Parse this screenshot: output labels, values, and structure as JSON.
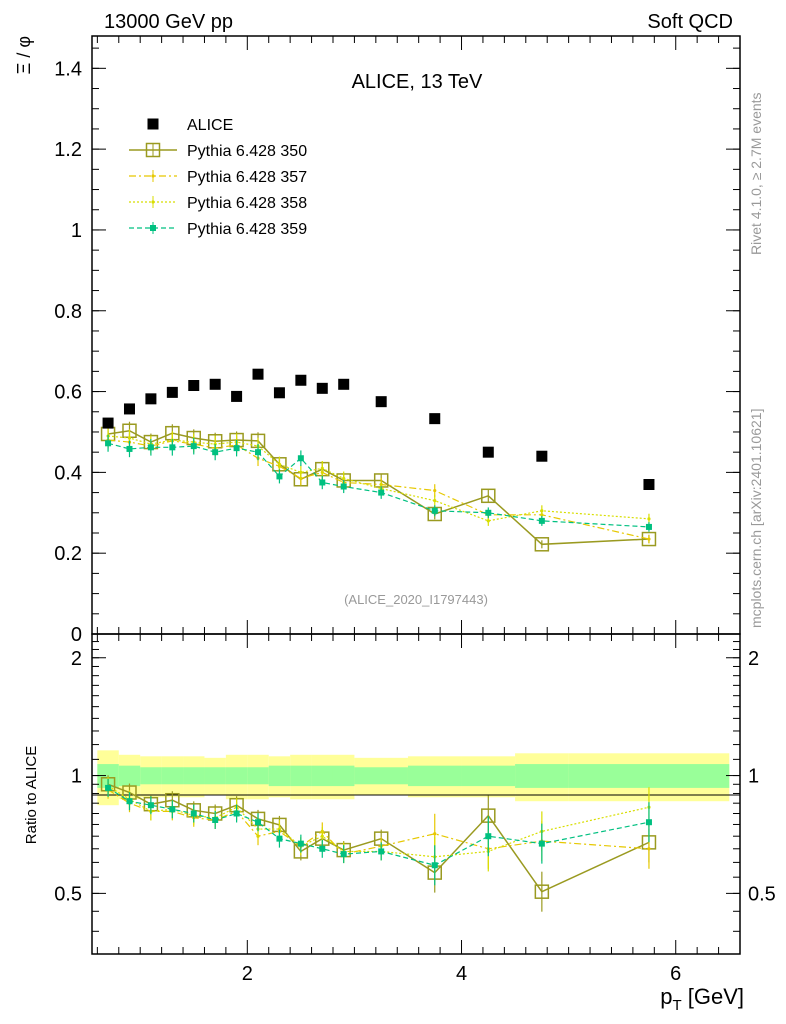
{
  "header": {
    "left": "13000 GeV pp",
    "right": "Soft QCD",
    "plot_title": "ALICE, 13 TeV",
    "analysis_id": "(ALICE_2020_I1797443)",
    "side_rivet": "Rivet 4.1.0, ≥ 2.7M events",
    "side_site": "mcplots.cern.ch [arXiv:2401.10621]"
  },
  "colors": {
    "alice": "#000000",
    "p350": "#9a9a20",
    "p357": "#e6c800",
    "p358": "#d8de00",
    "p359": "#00c080",
    "band_inner": "#99ff99",
    "band_outer": "#ffff99"
  },
  "chart_data": [
    {
      "type": "scatter",
      "title": "ALICE, 13 TeV",
      "xlabel": "p_T [GeV]",
      "ylabel": "Ξ / φ",
      "xlim": [
        0.55,
        6.6
      ],
      "ylim": [
        0,
        1.48
      ],
      "yticks": [
        "0",
        "0.2",
        "0.4",
        "0.6",
        "0.8",
        "1",
        "1.2",
        "1.4"
      ],
      "x": [
        0.7,
        0.9,
        1.1,
        1.3,
        1.5,
        1.7,
        1.9,
        2.1,
        2.3,
        2.5,
        2.7,
        2.9,
        3.25,
        3.75,
        4.25,
        4.75,
        5.75
      ],
      "legend": [
        "ALICE",
        "Pythia 6.428 350",
        "Pythia 6.428 357",
        "Pythia 6.428 358",
        "Pythia 6.428 359"
      ],
      "series": [
        {
          "name": "ALICE",
          "values": [
            0.522,
            0.557,
            0.582,
            0.598,
            0.615,
            0.618,
            0.588,
            0.643,
            0.597,
            0.628,
            0.608,
            0.618,
            0.575,
            0.533,
            0.45,
            0.44,
            0.37
          ]
        },
        {
          "name": "Pythia 6.428 350",
          "values": [
            0.495,
            0.503,
            0.475,
            0.497,
            0.485,
            0.477,
            0.48,
            0.478,
            0.42,
            0.383,
            0.408,
            0.38,
            0.38,
            0.297,
            0.342,
            0.222,
            0.235
          ]
        },
        {
          "name": "Pythia 6.428 357",
          "values": [
            0.48,
            0.475,
            0.465,
            0.478,
            0.47,
            0.46,
            0.468,
            0.435,
            0.415,
            0.385,
            0.4,
            0.375,
            0.37,
            0.355,
            0.295,
            0.295,
            0.235
          ]
        },
        {
          "name": "Pythia 6.428 358",
          "values": [
            0.49,
            0.485,
            0.47,
            0.48,
            0.475,
            0.47,
            0.475,
            0.465,
            0.42,
            0.4,
            0.41,
            0.385,
            0.36,
            0.33,
            0.28,
            0.305,
            0.285
          ]
        },
        {
          "name": "Pythia 6.428 359",
          "values": [
            0.472,
            0.458,
            0.462,
            0.462,
            0.465,
            0.45,
            0.46,
            0.45,
            0.39,
            0.435,
            0.375,
            0.365,
            0.35,
            0.305,
            0.3,
            0.28,
            0.265
          ]
        }
      ]
    },
    {
      "type": "line",
      "ylabel": "Ratio to ALICE",
      "xlabel": "p_T [GeV]",
      "xlim": [
        0.55,
        6.6
      ],
      "ylim": [
        0.35,
        2.3
      ],
      "yticks": [
        "0.5",
        "1",
        "2"
      ],
      "xticks": [
        "2",
        "4",
        "6"
      ],
      "x": [
        0.7,
        0.9,
        1.1,
        1.3,
        1.5,
        1.7,
        1.9,
        2.1,
        2.3,
        2.5,
        2.7,
        2.9,
        3.25,
        3.75,
        4.25,
        4.75,
        5.75
      ],
      "band_edges": [
        0.6,
        0.8,
        1.0,
        1.2,
        1.4,
        1.6,
        1.8,
        2.0,
        2.2,
        2.4,
        2.6,
        2.8,
        3.0,
        3.5,
        4.0,
        4.5,
        5.0,
        6.5
      ],
      "band_inner_rel": [
        0.07,
        0.06,
        0.05,
        0.05,
        0.05,
        0.05,
        0.05,
        0.05,
        0.06,
        0.06,
        0.06,
        0.06,
        0.05,
        0.06,
        0.06,
        0.07,
        0.07
      ],
      "band_outer_rel": [
        0.16,
        0.13,
        0.12,
        0.12,
        0.12,
        0.11,
        0.13,
        0.13,
        0.12,
        0.13,
        0.13,
        0.13,
        0.11,
        0.12,
        0.12,
        0.14,
        0.14
      ],
      "series": [
        {
          "name": "Pythia 6.428 350",
          "values": [
            0.95,
            0.905,
            0.845,
            0.865,
            0.815,
            0.8,
            0.84,
            0.775,
            0.748,
            0.64,
            0.69,
            0.645,
            0.69,
            0.565,
            0.79,
            0.505,
            0.675
          ]
        },
        {
          "name": "Pythia 6.428 357",
          "values": [
            0.92,
            0.85,
            0.81,
            0.81,
            0.78,
            0.77,
            0.81,
            0.7,
            0.72,
            0.66,
            0.72,
            0.63,
            0.66,
            0.71,
            0.65,
            0.68,
            0.65
          ]
        },
        {
          "name": "Pythia 6.428 358",
          "values": [
            0.94,
            0.87,
            0.81,
            0.82,
            0.79,
            0.78,
            0.83,
            0.73,
            0.73,
            0.66,
            0.7,
            0.64,
            0.64,
            0.62,
            0.64,
            0.72,
            0.83
          ]
        },
        {
          "name": "Pythia 6.428 359",
          "values": [
            0.93,
            0.86,
            0.84,
            0.82,
            0.8,
            0.77,
            0.8,
            0.76,
            0.69,
            0.67,
            0.65,
            0.63,
            0.64,
            0.59,
            0.7,
            0.67,
            0.76
          ]
        }
      ]
    }
  ]
}
